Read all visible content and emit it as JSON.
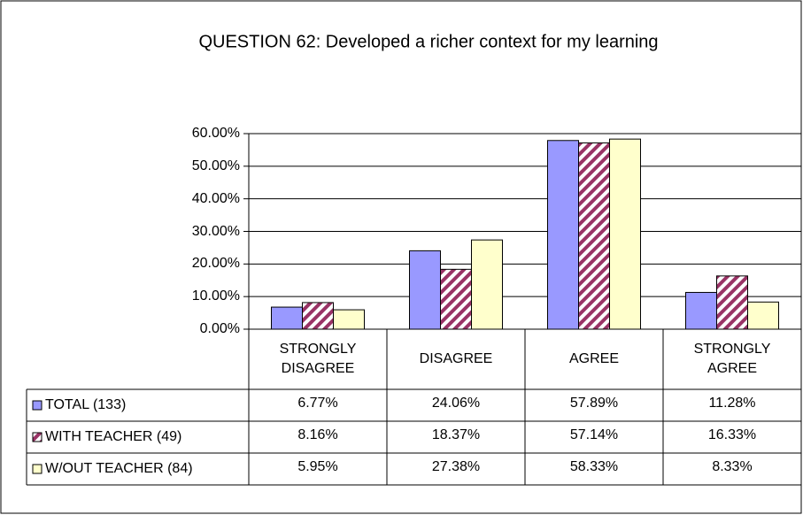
{
  "chart_data": {
    "type": "bar",
    "title": "QUESTION 62: Developed a richer context for my learning",
    "categories": [
      "STRONGLY DISAGREE",
      "DISAGREE",
      "AGREE",
      "STRONGLY AGREE"
    ],
    "series": [
      {
        "name": "TOTAL (133)",
        "color": "#9999ff",
        "values": [
          6.77,
          24.06,
          57.89,
          11.28
        ],
        "value_labels": [
          "6.77%",
          "24.06%",
          "57.89%",
          "11.28%"
        ]
      },
      {
        "name": "WITH TEACHER (49)",
        "color": "#993366",
        "pattern": "diagonal",
        "values": [
          8.16,
          18.37,
          57.14,
          16.33
        ],
        "value_labels": [
          "8.16%",
          "18.37%",
          "57.14%",
          "16.33%"
        ]
      },
      {
        "name": "W/OUT TEACHER (84)",
        "color": "#ffffcc",
        "values": [
          5.95,
          27.38,
          58.33,
          8.33
        ],
        "value_labels": [
          "5.95%",
          "27.38%",
          "58.33%",
          "8.33%"
        ]
      }
    ],
    "ylim": [
      0,
      60
    ],
    "yticks": [
      {
        "value": 0,
        "label": "0.00%"
      },
      {
        "value": 10,
        "label": "10.00%"
      },
      {
        "value": 20,
        "label": "20.00%"
      },
      {
        "value": 30,
        "label": "30.00%"
      },
      {
        "value": 40,
        "label": "40.00%"
      },
      {
        "value": 50,
        "label": "50.00%"
      },
      {
        "value": 60,
        "label": "60.00%"
      }
    ],
    "grid": true
  }
}
